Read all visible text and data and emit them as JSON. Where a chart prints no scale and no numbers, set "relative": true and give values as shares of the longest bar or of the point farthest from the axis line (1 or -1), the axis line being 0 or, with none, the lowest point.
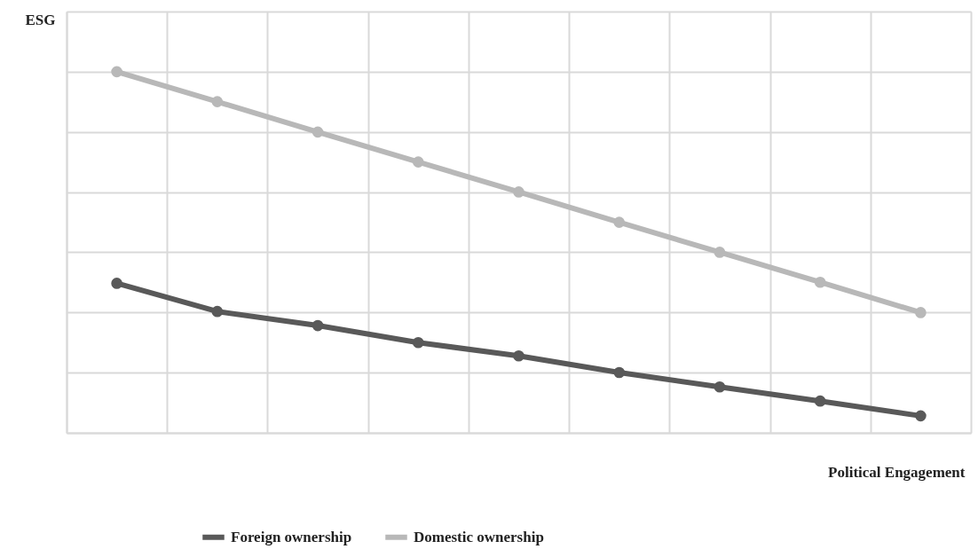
{
  "chart_data": {
    "type": "line",
    "relative": true,
    "ylabel": "ESG",
    "xlabel": "Political Engagement",
    "categories": [
      null,
      null,
      null,
      null,
      null,
      null,
      null,
      null,
      null
    ],
    "series": [
      {
        "name": "Foreign ownership",
        "color": "#595959",
        "values": [
          0.414,
          0.336,
          0.297,
          0.25,
          0.213,
          0.167,
          0.127,
          0.088,
          0.047
        ]
      },
      {
        "name": "Domestic ownership",
        "color": "#b8b8b8",
        "values": [
          1,
          0.917,
          0.833,
          0.75,
          0.667,
          0.583,
          0.5,
          0.417,
          0.333
        ]
      }
    ],
    "grid": true,
    "legend": "bottom",
    "marker": "circle",
    "line_style": "solid"
  }
}
